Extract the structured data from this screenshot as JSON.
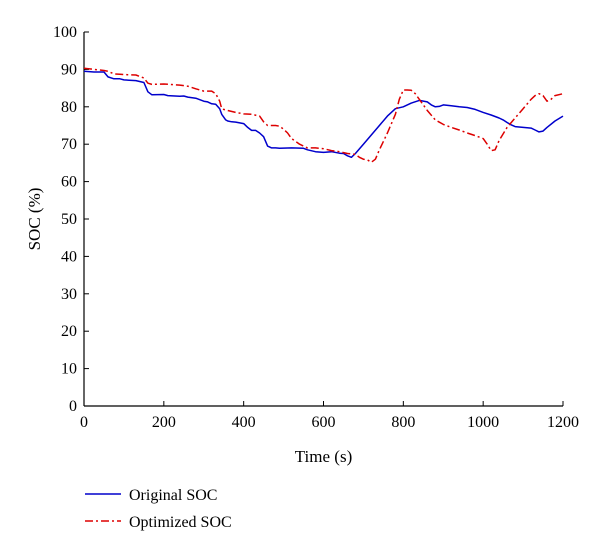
{
  "chart_data": {
    "type": "line",
    "title": "",
    "xlabel": "Time (s)",
    "ylabel": "SOC (%)",
    "xlim": [
      0,
      1200
    ],
    "ylim": [
      0,
      100
    ],
    "xticks": [
      0,
      200,
      400,
      600,
      800,
      1000,
      1200
    ],
    "yticks": [
      0,
      10,
      20,
      30,
      40,
      50,
      60,
      70,
      80,
      90,
      100
    ],
    "grid": false,
    "legend_position": "bottom-left, below plot",
    "series": [
      {
        "name": "Original SOC",
        "color": "#0000cc",
        "line_style": "solid",
        "x": [
          0,
          25,
          50,
          60,
          75,
          90,
          100,
          130,
          150,
          160,
          170,
          200,
          210,
          240,
          250,
          260,
          280,
          300,
          310,
          320,
          330,
          340,
          345,
          355,
          360,
          370,
          380,
          400,
          410,
          420,
          430,
          440,
          450,
          460,
          470,
          480,
          490,
          520,
          550,
          560,
          580,
          600,
          620,
          640,
          650,
          660,
          670,
          680,
          700,
          720,
          740,
          760,
          780,
          800,
          820,
          840,
          860,
          870,
          880,
          890,
          900,
          920,
          940,
          960,
          980,
          1000,
          1020,
          1040,
          1050,
          1060,
          1070,
          1080,
          1100,
          1120,
          1130,
          1140,
          1150,
          1160,
          1180,
          1200
        ],
        "y": [
          89.5,
          89.3,
          89.3,
          88,
          87.5,
          87.5,
          87.2,
          87,
          86.5,
          84,
          83.2,
          83.3,
          83,
          82.8,
          82.9,
          82.6,
          82.3,
          81.5,
          81.3,
          80.8,
          80.7,
          79.5,
          78,
          76.5,
          76.2,
          76,
          75.9,
          75.5,
          74.5,
          73.7,
          73.7,
          73,
          72,
          69.5,
          69,
          69,
          68.9,
          69,
          68.9,
          68.5,
          68,
          67.8,
          68,
          67.6,
          67.5,
          66.9,
          66.5,
          67.5,
          70,
          72.5,
          75,
          77.5,
          79.5,
          80,
          81,
          81.7,
          81.3,
          80.5,
          80,
          80.1,
          80.5,
          80.3,
          80,
          79.8,
          79.3,
          78.5,
          77.8,
          77,
          76.5,
          75.8,
          75.2,
          74.7,
          74.5,
          74.3,
          73.8,
          73.3,
          73.5,
          74.5,
          76.2,
          77.5
        ]
      },
      {
        "name": "Optimized SOC",
        "color": "#dd0000",
        "line_style": "dash-dot",
        "x": [
          0,
          25,
          50,
          60,
          75,
          90,
          100,
          130,
          150,
          160,
          170,
          200,
          240,
          260,
          280,
          300,
          320,
          330,
          340,
          345,
          350,
          360,
          380,
          400,
          420,
          440,
          450,
          460,
          480,
          490,
          500,
          510,
          520,
          540,
          560,
          580,
          600,
          620,
          640,
          660,
          680,
          690,
          700,
          710,
          720,
          730,
          740,
          760,
          780,
          790,
          800,
          810,
          820,
          830,
          840,
          860,
          880,
          900,
          920,
          940,
          960,
          980,
          1000,
          1010,
          1020,
          1030,
          1040,
          1060,
          1080,
          1100,
          1120,
          1130,
          1140,
          1150,
          1160,
          1170,
          1180,
          1200
        ],
        "y": [
          90.3,
          90,
          89.7,
          89.5,
          88.8,
          88.7,
          88.6,
          88.5,
          87.7,
          86.3,
          86,
          86.1,
          85.8,
          85.5,
          84.8,
          84.2,
          84.2,
          83.5,
          81.5,
          79.5,
          79.3,
          79,
          78.5,
          78.1,
          78,
          77.5,
          76,
          75,
          75,
          74.8,
          74,
          73,
          71.5,
          70,
          69,
          69,
          68.8,
          68.3,
          68,
          67.5,
          67.3,
          66.5,
          66,
          65.8,
          65.2,
          66,
          68.5,
          73,
          78,
          82,
          84.5,
          84.5,
          84.4,
          83.5,
          82,
          79,
          76.5,
          75.3,
          74.5,
          73.8,
          73,
          72.3,
          71.5,
          70,
          68.3,
          68.5,
          71,
          74.5,
          77,
          79.5,
          82,
          83,
          83.5,
          83,
          81.5,
          82,
          83,
          83.5
        ]
      }
    ]
  }
}
